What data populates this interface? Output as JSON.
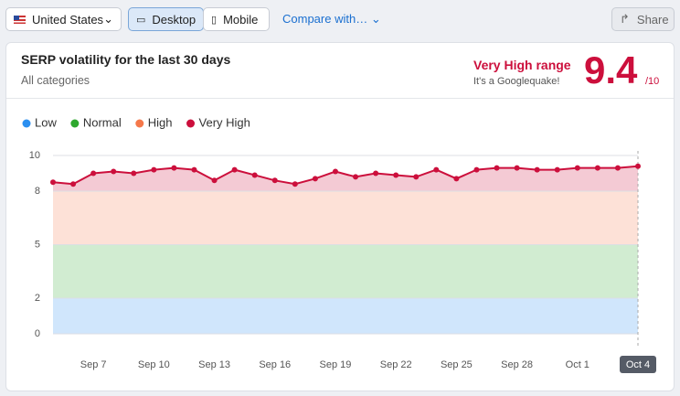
{
  "toolbar": {
    "country": "United States",
    "devices": [
      "Desktop",
      "Mobile"
    ],
    "compare": "Compare with…",
    "share": "Share"
  },
  "card": {
    "title": "SERP volatility for the last 30 days",
    "subtitle": "All categories",
    "range_label": "Very High range",
    "range_note": "It's a Googlequake!",
    "score": 9.4,
    "score_max": "/10"
  },
  "chart_data": {
    "type": "line",
    "categories": [
      null,
      null,
      "Sep 7",
      null,
      null,
      "Sep 10",
      null,
      null,
      "Sep 13",
      null,
      null,
      "Sep 16",
      null,
      null,
      "Sep 19",
      null,
      null,
      "Sep 22",
      null,
      null,
      "Sep 25",
      null,
      null,
      "Sep 28",
      null,
      null,
      "Oct 1",
      null,
      null,
      "Oct 4"
    ],
    "values": [
      8.5,
      8.4,
      9.0,
      9.1,
      9.0,
      9.2,
      9.3,
      9.2,
      8.6,
      9.2,
      8.9,
      8.6,
      8.4,
      8.7,
      9.1,
      8.8,
      9.0,
      8.9,
      8.8,
      9.2,
      8.7,
      9.2,
      9.3,
      9.3,
      9.2,
      9.2,
      9.3,
      9.3,
      9.3,
      9.4
    ],
    "color": "#cc0f3c",
    "bands": [
      {
        "name": "Low",
        "color": "#2b8ff0",
        "range": [
          0,
          2
        ]
      },
      {
        "name": "Normal",
        "color": "#2ea82e",
        "range": [
          2,
          5
        ]
      },
      {
        "name": "High",
        "color": "#f5784a",
        "range": [
          5,
          8
        ]
      },
      {
        "name": "Very High",
        "color": "#cc0f3c",
        "range": [
          8,
          10
        ]
      }
    ],
    "ylim": [
      0,
      10
    ],
    "yticks": [
      0,
      2,
      5,
      8,
      10
    ],
    "grid": true
  }
}
